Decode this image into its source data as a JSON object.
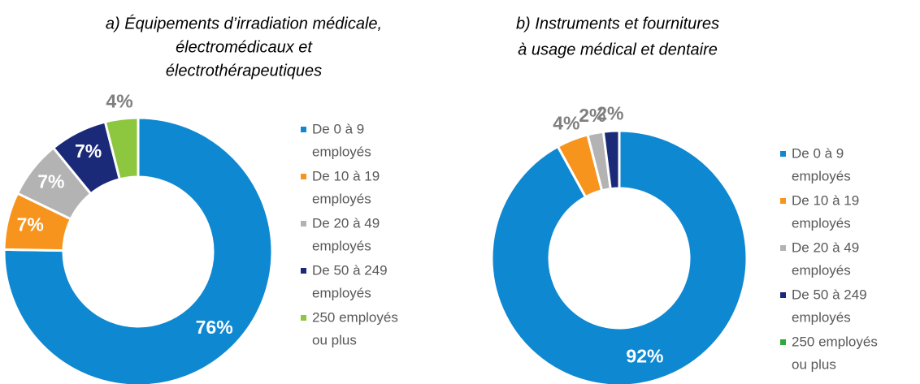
{
  "chart_data": [
    {
      "type": "pie",
      "title": [
        "a) Équipements d’irradiation médicale,",
        "électromédicaux et",
        "électrothérapeutiques"
      ],
      "categories": [
        [
          "De 0 à 9",
          "employés"
        ],
        [
          "De 10 à 19",
          "employés"
        ],
        [
          "De 20 à 49",
          "employés"
        ],
        [
          "De 50 à 249",
          "employés"
        ],
        [
          "250 employés",
          "ou plus"
        ]
      ],
      "values": [
        76,
        7,
        7,
        7,
        4
      ],
      "value_labels": [
        "76%",
        "7%",
        "7%",
        "7%",
        "4%"
      ],
      "colors": [
        "#0f88d2",
        "#f7941d",
        "#b3b3b3",
        "#1b2a78",
        "#8dc63f"
      ]
    },
    {
      "type": "pie",
      "title": [
        "b) Instruments et fournitures",
        "à usage médical et dentaire"
      ],
      "categories": [
        [
          "De 0 à 9",
          "employés"
        ],
        [
          "De 10 à 19",
          "employés"
        ],
        [
          "De 20 à 49",
          "employés"
        ],
        [
          "De 50 à 249",
          "employés"
        ],
        [
          "250 employés",
          "ou plus"
        ]
      ],
      "values": [
        92,
        4,
        2,
        2,
        0
      ],
      "value_labels": [
        "92%",
        "4%",
        "2%",
        "2%",
        null
      ],
      "colors": [
        "#0f88d2",
        "#f7941d",
        "#b3b3b3",
        "#1b2a78",
        "#2ea83a"
      ]
    }
  ]
}
